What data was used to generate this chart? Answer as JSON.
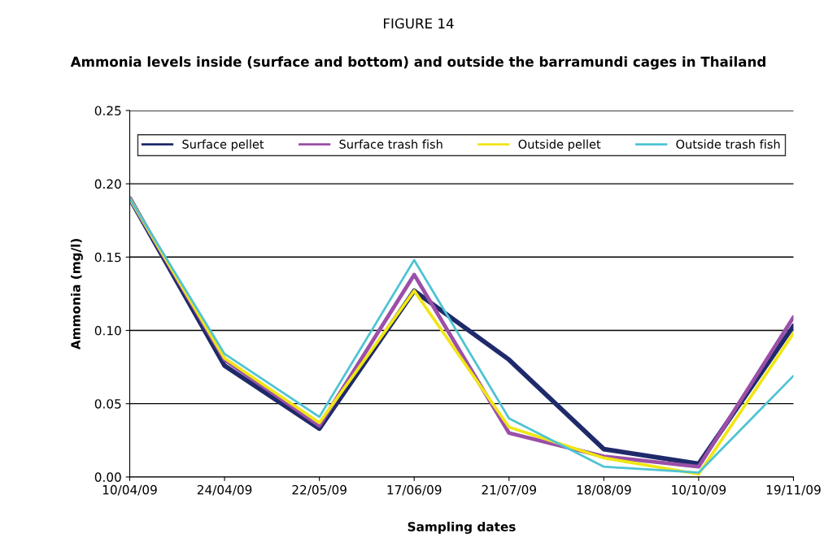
{
  "chart_data": {
    "type": "line",
    "title": "FIGURE 14",
    "subtitle": "Ammonia levels inside (surface and bottom) and outside the barramundi cages in Thailand",
    "xlabel": "Sampling dates",
    "ylabel": "Ammonia (mg/l)",
    "categories": [
      "10/04/09",
      "24/04/09",
      "22/05/09",
      "17/06/09",
      "21/07/09",
      "18/08/09",
      "10/10/09",
      "19/11/09"
    ],
    "series": [
      {
        "name": "Surface pellet",
        "color": "#1f2a6b",
        "values": [
          0.19,
          0.076,
          0.033,
          0.127,
          0.08,
          0.019,
          0.009,
          0.103
        ]
      },
      {
        "name": "Surface trash fish",
        "color": "#9b4fa8",
        "values": [
          0.19,
          0.08,
          0.035,
          0.138,
          0.03,
          0.014,
          0.007,
          0.109
        ]
      },
      {
        "name": "Outside pellet",
        "color": "#f0e614",
        "values": [
          0.19,
          0.081,
          0.037,
          0.127,
          0.034,
          0.013,
          0.002,
          0.098
        ]
      },
      {
        "name": "Outside trash fish",
        "color": "#4fc3d4",
        "values": [
          0.19,
          0.084,
          0.041,
          0.148,
          0.04,
          0.007,
          0.003,
          0.069
        ]
      }
    ],
    "ylim": [
      0,
      0.25
    ],
    "yticks": [
      {
        "value": 0,
        "label": "0.00"
      },
      {
        "value": 0.05,
        "label": "0.05"
      },
      {
        "value": 0.1,
        "label": "0.10"
      },
      {
        "value": 0.15,
        "label": "0.15"
      },
      {
        "value": 0.2,
        "label": "0.20"
      },
      {
        "value": 0.25,
        "label": "0.25"
      }
    ],
    "grid": "y",
    "legend": "top",
    "marker": "none",
    "line_style": "solid"
  }
}
